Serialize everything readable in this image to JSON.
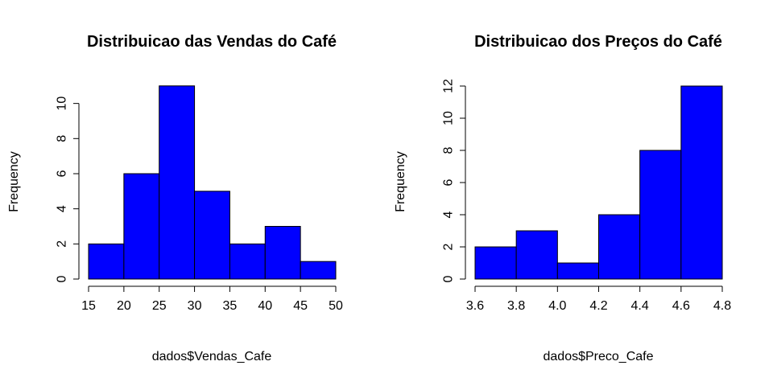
{
  "chart_data": [
    {
      "type": "bar",
      "title": "Distribuicao das Vendas do Café",
      "xlabel": "dados$Vendas_Cafe",
      "ylabel": "Frequency",
      "bar_color": "#0000ff",
      "bins": [
        {
          "from": 15,
          "to": 20,
          "count": 2
        },
        {
          "from": 20,
          "to": 25,
          "count": 6
        },
        {
          "from": 25,
          "to": 30,
          "count": 11
        },
        {
          "from": 30,
          "to": 35,
          "count": 5
        },
        {
          "from": 35,
          "to": 40,
          "count": 2
        },
        {
          "from": 40,
          "to": 45,
          "count": 3
        },
        {
          "from": 45,
          "to": 50,
          "count": 1
        }
      ],
      "xlim": [
        15,
        50
      ],
      "ylim": [
        0,
        11
      ],
      "xticks": [
        15,
        20,
        25,
        30,
        35,
        40,
        45,
        50
      ],
      "xtick_labels": [
        "15",
        "20",
        "25",
        "30",
        "35",
        "40",
        "45",
        "50"
      ],
      "yticks": [
        0,
        2,
        4,
        6,
        8,
        10
      ],
      "ytick_labels": [
        "0",
        "2",
        "4",
        "6",
        "8",
        "10"
      ],
      "grid": false
    },
    {
      "type": "bar",
      "title": "Distribuicao dos Preços do Café",
      "xlabel": "dados$Preco_Cafe",
      "ylabel": "Frequency",
      "bar_color": "#0000ff",
      "bins": [
        {
          "from": 3.6,
          "to": 3.8,
          "count": 2
        },
        {
          "from": 3.8,
          "to": 4.0,
          "count": 3
        },
        {
          "from": 4.0,
          "to": 4.2,
          "count": 1
        },
        {
          "from": 4.2,
          "to": 4.4,
          "count": 4
        },
        {
          "from": 4.4,
          "to": 4.6,
          "count": 8
        },
        {
          "from": 4.6,
          "to": 4.8,
          "count": 12
        }
      ],
      "xlim": [
        3.6,
        4.8
      ],
      "ylim": [
        0,
        12
      ],
      "xticks": [
        3.6,
        3.8,
        4.0,
        4.2,
        4.4,
        4.6,
        4.8
      ],
      "xtick_labels": [
        "3.6",
        "3.8",
        "4.0",
        "4.2",
        "4.4",
        "4.6",
        "4.8"
      ],
      "yticks": [
        0,
        2,
        4,
        6,
        8,
        10,
        12
      ],
      "ytick_labels": [
        "0",
        "2",
        "4",
        "6",
        "8",
        "10",
        "12"
      ],
      "grid": false
    }
  ]
}
